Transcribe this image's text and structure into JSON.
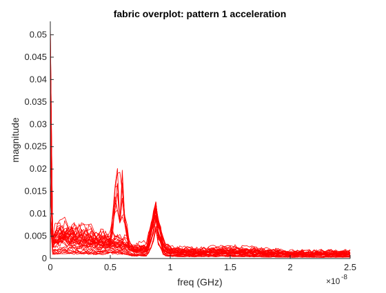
{
  "chart_data": {
    "type": "line",
    "title": "fabric overplot: pattern 1 acceleration",
    "xlabel": "freq (GHz)",
    "ylabel": "magnitude",
    "x_exponent_base": "×10",
    "x_exponent_power": "-8",
    "xlim": [
      0,
      2.5
    ],
    "ylim": [
      0,
      0.053
    ],
    "x_ticks": [
      0,
      0.5,
      1,
      1.5,
      2,
      2.5
    ],
    "x_tick_labels": [
      "0",
      "0.5",
      "1",
      "1.5",
      "2",
      "2.5"
    ],
    "y_ticks": [
      0,
      0.005,
      0.01,
      0.015,
      0.02,
      0.025,
      0.03,
      0.035,
      0.04,
      0.045,
      0.05
    ],
    "y_tick_labels": [
      "0",
      "0.005",
      "0.01",
      "0.015",
      "0.02",
      "0.025",
      "0.03",
      "0.035",
      "0.04",
      "0.045",
      "0.05"
    ],
    "grid": false,
    "line_color": "#ff0000",
    "overplot_count": 36,
    "series": [
      {
        "x": [
          0,
          0.01,
          0.05,
          0.1,
          0.2,
          0.3,
          0.4,
          0.5,
          0.55,
          0.6,
          0.65,
          0.7,
          0.8,
          0.85,
          0.88,
          0.9,
          0.95,
          1.0,
          1.2,
          1.5,
          2.0,
          2.5
        ],
        "y": [
          0.053,
          0.006,
          0.008,
          0.0085,
          0.008,
          0.0075,
          0.0065,
          0.006,
          0.0225,
          0.02,
          0.004,
          0.003,
          0.003,
          0.008,
          0.012,
          0.009,
          0.004,
          0.003,
          0.0025,
          0.0028,
          0.002,
          0.002
        ]
      },
      {
        "x": [
          0,
          0.01,
          0.05,
          0.1,
          0.2,
          0.3,
          0.4,
          0.5,
          0.6,
          0.7,
          0.8,
          0.85,
          0.88,
          0.9,
          0.95,
          1.0,
          1.2,
          1.5,
          2.0,
          2.5
        ],
        "y": [
          0.045,
          0.005,
          0.007,
          0.0075,
          0.007,
          0.006,
          0.0055,
          0.005,
          0.0045,
          0.003,
          0.003,
          0.009,
          0.013,
          0.008,
          0.003,
          0.002,
          0.002,
          0.0025,
          0.0015,
          0.0015
        ]
      },
      {
        "x": [
          0,
          0.01,
          0.05,
          0.1,
          0.2,
          0.3,
          0.4,
          0.5,
          0.6,
          0.7,
          0.8,
          0.85,
          0.88,
          0.9,
          0.95,
          1.0,
          1.2,
          1.5,
          2.0,
          2.5
        ],
        "y": [
          0.03,
          0.004,
          0.0055,
          0.006,
          0.005,
          0.0045,
          0.004,
          0.0045,
          0.004,
          0.0025,
          0.0025,
          0.007,
          0.011,
          0.006,
          0.0025,
          0.0018,
          0.0015,
          0.0018,
          0.0012,
          0.0012
        ]
      },
      {
        "x": [
          0,
          0.01,
          0.05,
          0.1,
          0.2,
          0.3,
          0.4,
          0.5,
          0.6,
          0.7,
          0.8,
          0.85,
          0.88,
          0.9,
          0.95,
          1.0,
          1.2,
          1.5,
          2.0,
          2.5
        ],
        "y": [
          0.02,
          0.003,
          0.004,
          0.0045,
          0.0038,
          0.0032,
          0.003,
          0.0035,
          0.003,
          0.0018,
          0.0018,
          0.005,
          0.009,
          0.005,
          0.002,
          0.0013,
          0.0011,
          0.0013,
          0.0009,
          0.0009
        ]
      },
      {
        "x": [
          0,
          0.01,
          0.05,
          0.1,
          0.2,
          0.3,
          0.4,
          0.5,
          0.6,
          0.7,
          0.8,
          0.85,
          0.88,
          0.9,
          0.95,
          1.0,
          1.2,
          1.5,
          2.0,
          2.5
        ],
        "y": [
          0.01,
          0.0015,
          0.002,
          0.0022,
          0.002,
          0.0018,
          0.0016,
          0.002,
          0.0017,
          0.001,
          0.001,
          0.003,
          0.007,
          0.0035,
          0.0012,
          0.0008,
          0.0007,
          0.0008,
          0.0005,
          0.0005
        ]
      }
    ]
  }
}
